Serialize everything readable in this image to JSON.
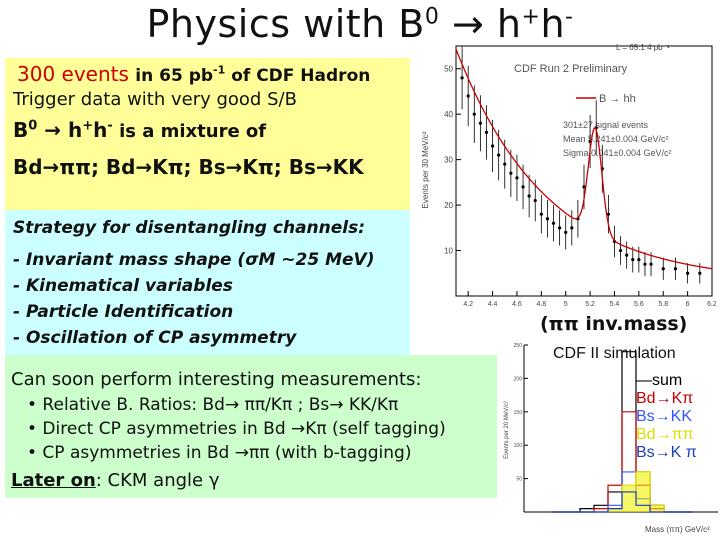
{
  "slide": {
    "title_main": "Physics with B",
    "title_b_sup": "0",
    "title_arrow": "→",
    "title_h1": "h",
    "title_h1_sup": "+",
    "title_h2": "h",
    "title_h2_sup": "-"
  },
  "yellow_box": {
    "events": "300 events",
    "in_text": "in 65 pb",
    "pb_sup": "-1",
    "of_text": " of  CDF Hadron",
    "line2": "Trigger data with very good S/B",
    "b0": "B",
    "b0_sup": "0",
    "arrow": "→",
    "hh": " h",
    "hh_sup1": "+",
    "hh2": "h",
    "hh_sup2": "-",
    "mixture": " is a mixture of",
    "channels": "Bd→ππ; Bd→Kπ; Bs→Kπ; Bs→KK"
  },
  "cyan_box": {
    "heading": "Strategy for disentangling channels:",
    "items": [
      "- Invariant mass shape (σM ~25 MeV)",
      "- Kinematical variables",
      "- Particle Identification",
      "- Oscillation of CP asymmetry"
    ]
  },
  "green_box": {
    "intro": "Can soon perform interesting measurements:",
    "bullet1": "• Relative B. Ratios: Bd→ ππ/Kπ ; Bs→ KK/Kπ",
    "bullet2": "• Direct CP asymmetries in Bd →Kπ (self tagging)",
    "bullet3": "• CP asymmetries in Bd →ππ (with b-tagging)",
    "later_label": "Later on",
    "later_text": ":  CKM angle γ"
  },
  "plot1": {
    "lumi": "L = 65.1 4 pb⁻¹",
    "header": "CDF Run 2 Preliminary",
    "legend_label": "B  → hh",
    "signal": "301±27 signal events",
    "mean": "Mean 5.241±0.004 GeV/c²",
    "sigma": "Sigma 0.041±0.004 GeV/c²",
    "ylabel": "Events per 30 MeV/c²",
    "yticks": [
      "50",
      "40",
      "30",
      "20",
      "10"
    ],
    "xticks": [
      "4.2",
      "4.4",
      "4.6",
      "4.8",
      "5",
      "5.2",
      "5.4",
      "5.6",
      "5.8",
      "6",
      "6.2"
    ],
    "caption": "(ππ inv.mass)",
    "colors": {
      "data": "#000000",
      "fit": "#cc0000"
    }
  },
  "plot2": {
    "title": "CDF II  simulation",
    "legend": [
      {
        "label": "—sum",
        "color": "#000000"
      },
      {
        "label": "Bd→Kπ",
        "color": "#cc0000"
      },
      {
        "label": "Bs→KK",
        "color": "#3355ff"
      },
      {
        "label": "Bd→ππ",
        "color": "#dddd00"
      },
      {
        "label": "Bs→K π",
        "color": "#1a3fb8"
      }
    ],
    "ylabel": "Events per 20 MeV/c²",
    "yticks": [
      "250",
      "200",
      "150",
      "100",
      "50"
    ],
    "xlabel": "Mass (ππ) GeV/c²"
  },
  "chart_data": [
    {
      "type": "histogram",
      "title": "CDF Run 2 Preliminary",
      "xlabel": "",
      "ylabel": "Events per 30 MeV/c²",
      "xlim": [
        4.1,
        6.2
      ],
      "ylim": [
        0,
        55
      ],
      "x": [
        4.15,
        4.2,
        4.25,
        4.3,
        4.35,
        4.4,
        4.45,
        4.5,
        4.55,
        4.6,
        4.65,
        4.7,
        4.75,
        4.8,
        4.85,
        4.9,
        4.95,
        5.0,
        5.05,
        5.1,
        5.15,
        5.2,
        5.25,
        5.3,
        5.35,
        5.4,
        5.45,
        5.5,
        5.55,
        5.6,
        5.65,
        5.7,
        5.8,
        5.9,
        6.0,
        6.1
      ],
      "values": [
        48,
        44,
        40,
        38,
        36,
        33,
        31,
        29,
        27,
        26,
        24,
        22,
        21,
        18,
        17,
        16,
        15,
        14,
        15,
        17,
        24,
        34,
        37,
        28,
        18,
        12,
        10,
        9,
        8,
        8,
        7,
        7,
        6,
        6,
        5,
        5
      ],
      "fit": "Gaussian signal plus falling background"
    },
    {
      "type": "histogram",
      "title": "CDF II  simulation",
      "ylabel": "Events per 20 MeV/c²",
      "xlabel": "Mass (ππ) GeV/c²",
      "ylim": [
        0,
        250
      ],
      "series": [
        {
          "name": "sum",
          "values": [
            0,
            0,
            5,
            10,
            30,
            240,
            60,
            10,
            0,
            0
          ]
        },
        {
          "name": "Bd→Kπ",
          "values": [
            0,
            0,
            0,
            5,
            40,
            150,
            40,
            5,
            0,
            0
          ]
        },
        {
          "name": "Bs→KK",
          "values": [
            0,
            0,
            0,
            0,
            10,
            60,
            20,
            0,
            0,
            0
          ]
        },
        {
          "name": "Bd→ππ",
          "values": [
            0,
            0,
            0,
            0,
            5,
            40,
            60,
            10,
            0,
            0
          ]
        },
        {
          "name": "Bs→K π",
          "values": [
            0,
            0,
            0,
            0,
            5,
            30,
            10,
            0,
            0,
            0
          ]
        }
      ]
    }
  ]
}
